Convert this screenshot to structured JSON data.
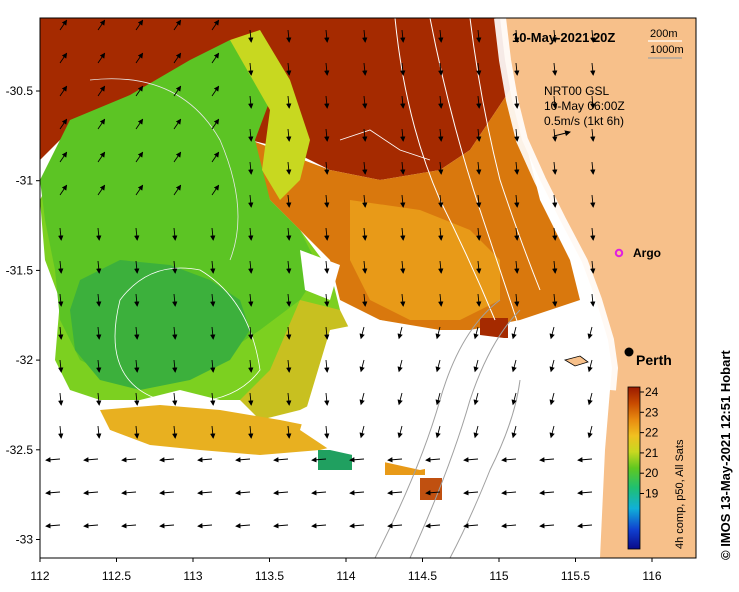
{
  "map": {
    "title_date": "10-May-2021 20Z",
    "depth_legend": [
      "200m",
      "1000m"
    ],
    "current_info": {
      "product": "NRT00 GSL",
      "datetime": "10-May 06:00Z",
      "scale": "0.5m/s (1kt 6h)"
    },
    "argo_label": "Argo",
    "city_label": "Perth",
    "credit": "© IMOS 13-May-2021 12:51 Hobart",
    "x_ticks": [
      "112",
      "112.5",
      "113",
      "113.5",
      "114",
      "114.5",
      "115",
      "115.5",
      "116"
    ],
    "y_ticks": [
      "-30.5",
      "-31",
      "-31.5",
      "-32",
      "-32.5",
      "-33"
    ],
    "colorbar": {
      "ticks": [
        "24",
        "23",
        "22",
        "21",
        "20",
        "19"
      ],
      "label": "4h comp, p50, All Sats"
    },
    "colors": {
      "land": "#f7c08a",
      "sst_warm": "#a52a00",
      "sst_mid": "#e08a10",
      "sst_cool": "#5cc424"
    }
  }
}
